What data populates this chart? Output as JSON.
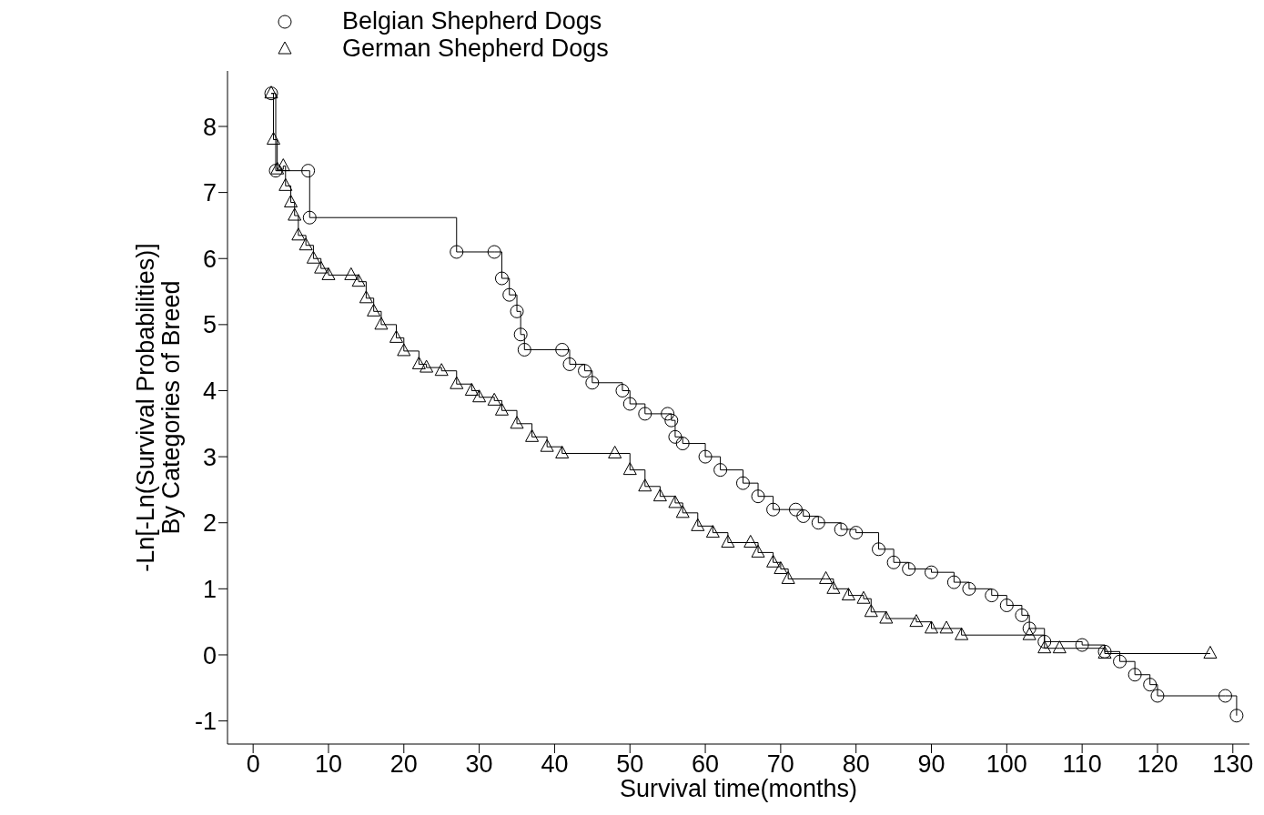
{
  "chart_data": {
    "type": "step",
    "xlabel": "Survival time(months)",
    "ylabel": "-Ln[-Ln(Survival Probabilities)]\nBy Categories of Breed",
    "xlim": [
      -3.4,
      132.2
    ],
    "ylim": [
      -1.35,
      8.84
    ],
    "xticks": [
      0,
      10,
      20,
      30,
      40,
      50,
      60,
      70,
      80,
      90,
      100,
      110,
      120,
      130
    ],
    "yticks": [
      -1,
      0,
      1,
      2,
      3,
      4,
      5,
      6,
      7,
      8
    ],
    "legend": "top left",
    "line_style": "solid",
    "series": [
      {
        "name": "Belgian Shepherd Dogs",
        "color": "#000000",
        "marker": "circle",
        "x": [
          2.4,
          3,
          7.3,
          7.5,
          27,
          32,
          33,
          34,
          35,
          35.5,
          36,
          41,
          42,
          44,
          45,
          49,
          50,
          52,
          55,
          55.5,
          56,
          57,
          60,
          62,
          65,
          67,
          69,
          72,
          73,
          75,
          78,
          80,
          83,
          85,
          87,
          90,
          93,
          95,
          98,
          100,
          102,
          103,
          105,
          110,
          113,
          115,
          117,
          119,
          120,
          129,
          130.5
        ],
        "values": [
          8.5,
          7.33,
          7.33,
          6.62,
          6.1,
          6.1,
          5.7,
          5.45,
          5.2,
          4.85,
          4.62,
          4.62,
          4.4,
          4.3,
          4.12,
          4.0,
          3.8,
          3.65,
          3.65,
          3.55,
          3.3,
          3.2,
          3.0,
          2.8,
          2.6,
          2.4,
          2.2,
          2.2,
          2.1,
          2.0,
          1.9,
          1.85,
          1.6,
          1.4,
          1.3,
          1.25,
          1.1,
          1.0,
          0.9,
          0.75,
          0.6,
          0.4,
          0.2,
          0.15,
          0.05,
          -0.1,
          -0.3,
          -0.45,
          -0.62,
          -0.62,
          -0.92
        ]
      },
      {
        "name": "German Shepherd Dogs",
        "color": "#000000",
        "marker": "triangle",
        "x": [
          2.4,
          2.7,
          3.2,
          4,
          4.3,
          5,
          5.5,
          6,
          7,
          8,
          9,
          10,
          13,
          14,
          15,
          16,
          17,
          19,
          20,
          22,
          23,
          25,
          27,
          29,
          30,
          32,
          33,
          35,
          37,
          39,
          41,
          48,
          50,
          52,
          54,
          56,
          57,
          59,
          61,
          63,
          66,
          67,
          69,
          70,
          71,
          76,
          77,
          79,
          81,
          82,
          84,
          88,
          90,
          92,
          94,
          103,
          105,
          107,
          113,
          127
        ],
        "values": [
          8.5,
          7.8,
          7.35,
          7.4,
          7.1,
          6.85,
          6.65,
          6.35,
          6.2,
          6.0,
          5.85,
          5.75,
          5.75,
          5.65,
          5.4,
          5.2,
          5.0,
          4.8,
          4.6,
          4.4,
          4.35,
          4.3,
          4.1,
          4.0,
          3.9,
          3.85,
          3.7,
          3.5,
          3.3,
          3.15,
          3.05,
          3.05,
          2.8,
          2.55,
          2.4,
          2.3,
          2.15,
          1.95,
          1.85,
          1.7,
          1.7,
          1.55,
          1.4,
          1.3,
          1.15,
          1.15,
          1.0,
          0.9,
          0.85,
          0.65,
          0.55,
          0.5,
          0.4,
          0.4,
          0.3,
          0.3,
          0.1,
          0.1,
          0.02,
          0.02
        ]
      }
    ]
  }
}
